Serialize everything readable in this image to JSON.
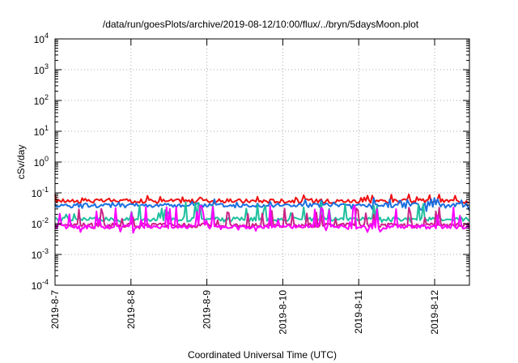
{
  "chart_data": {
    "type": "line",
    "title": "/data/run/goesPlots/archive/2019-08-12/10:00/flux/../bryn/5daysMoon.plot",
    "xlabel": "Coordinated Universal Time (UTC)",
    "ylabel": "cSv/day",
    "yscale": "log",
    "ylim": [
      0.0001,
      10000
    ],
    "y_tick_labels": [
      {
        "base": "10",
        "exp": "-4"
      },
      {
        "base": "10",
        "exp": "-3"
      },
      {
        "base": "10",
        "exp": "-2"
      },
      {
        "base": "10",
        "exp": "-1"
      },
      {
        "base": "10",
        "exp": "0"
      },
      {
        "base": "10",
        "exp": "1"
      },
      {
        "base": "10",
        "exp": "2"
      },
      {
        "base": "10",
        "exp": "3"
      },
      {
        "base": "10",
        "exp": "4"
      }
    ],
    "xlim": [
      "2019-08-07",
      "2019-08-12 11:00"
    ],
    "x_tick_labels": [
      "2019-8-7",
      "2019-8-8",
      "2019-8-9",
      "2019-8-10",
      "2019-8-11",
      "2019-8-12"
    ],
    "grid": true,
    "legend": "none",
    "series": [
      {
        "color": "#ee1111",
        "baseline": 0.055,
        "spike_max": 0.09,
        "dip_min": 0.045
      },
      {
        "color": "#1a6fe0",
        "baseline": 0.04,
        "spike_max": 0.07,
        "dip_min": 0.025
      },
      {
        "color": "#1fbf9f",
        "baseline": 0.014,
        "spike_max": 0.05,
        "dip_min": 0.011
      },
      {
        "color": "#cc2288",
        "baseline": 0.009,
        "spike_max": 0.035,
        "dip_min": 0.007
      },
      {
        "color": "#ff00ff",
        "baseline": 0.008,
        "spike_max": 0.04,
        "dip_min": 0.005
      }
    ]
  }
}
